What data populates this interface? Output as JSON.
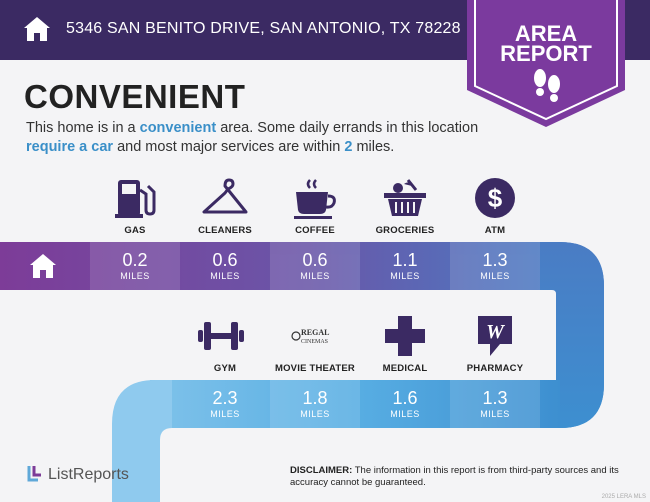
{
  "header": {
    "address": "5346 SAN BENITO DRIVE, SAN ANTONIO, TX 78228",
    "icon": "house-icon"
  },
  "badge": {
    "line1": "AREA",
    "line2": "REPORT",
    "icon": "footprints-icon"
  },
  "title": "CONVENIENT",
  "description": {
    "part1": "This home is in a ",
    "highlight1": "convenient",
    "part2": " area. Some daily errands in this location ",
    "highlight2": "require a car",
    "part3": " and most major services are within ",
    "highlight3": "2",
    "part4": " miles."
  },
  "row1": [
    {
      "label": "GAS",
      "value": "0.2",
      "unit": "MILES",
      "icon": "gas-pump-icon"
    },
    {
      "label": "CLEANERS",
      "value": "0.6",
      "unit": "MILES",
      "icon": "hanger-icon"
    },
    {
      "label": "COFFEE",
      "value": "0.6",
      "unit": "MILES",
      "icon": "coffee-cup-icon"
    },
    {
      "label": "GROCERIES",
      "value": "1.1",
      "unit": "MILES",
      "icon": "grocery-basket-icon"
    },
    {
      "label": "ATM",
      "value": "1.3",
      "unit": "MILES",
      "icon": "dollar-icon"
    }
  ],
  "row2": [
    {
      "label": "GYM",
      "value": "2.3",
      "unit": "MILES",
      "icon": "dumbbell-icon"
    },
    {
      "label": "MOVIE THEATER",
      "value": "1.8",
      "unit": "MILES",
      "icon": "regal-cinemas-logo",
      "logo_text1": "REGAL",
      "logo_text2": "CINEMAS"
    },
    {
      "label": "MEDICAL",
      "value": "1.6",
      "unit": "MILES",
      "icon": "medical-cross-icon"
    },
    {
      "label": "PHARMACY",
      "value": "1.3",
      "unit": "MILES",
      "icon": "walgreens-logo"
    }
  ],
  "footer": {
    "logo_text": "ListReports",
    "disclaimer_label": "DISCLAIMER:",
    "disclaimer_text": " The information in this report is from third-party sources and its accuracy cannot be guaranteed.",
    "copyright": "2025 LERA MLS"
  },
  "colors": {
    "header": "#3b2a63",
    "badge": "#7b3a9e",
    "gradient_start": "#7d3c98",
    "gradient_end": "#3d8fd0",
    "highlight": "#3a8fc8"
  }
}
